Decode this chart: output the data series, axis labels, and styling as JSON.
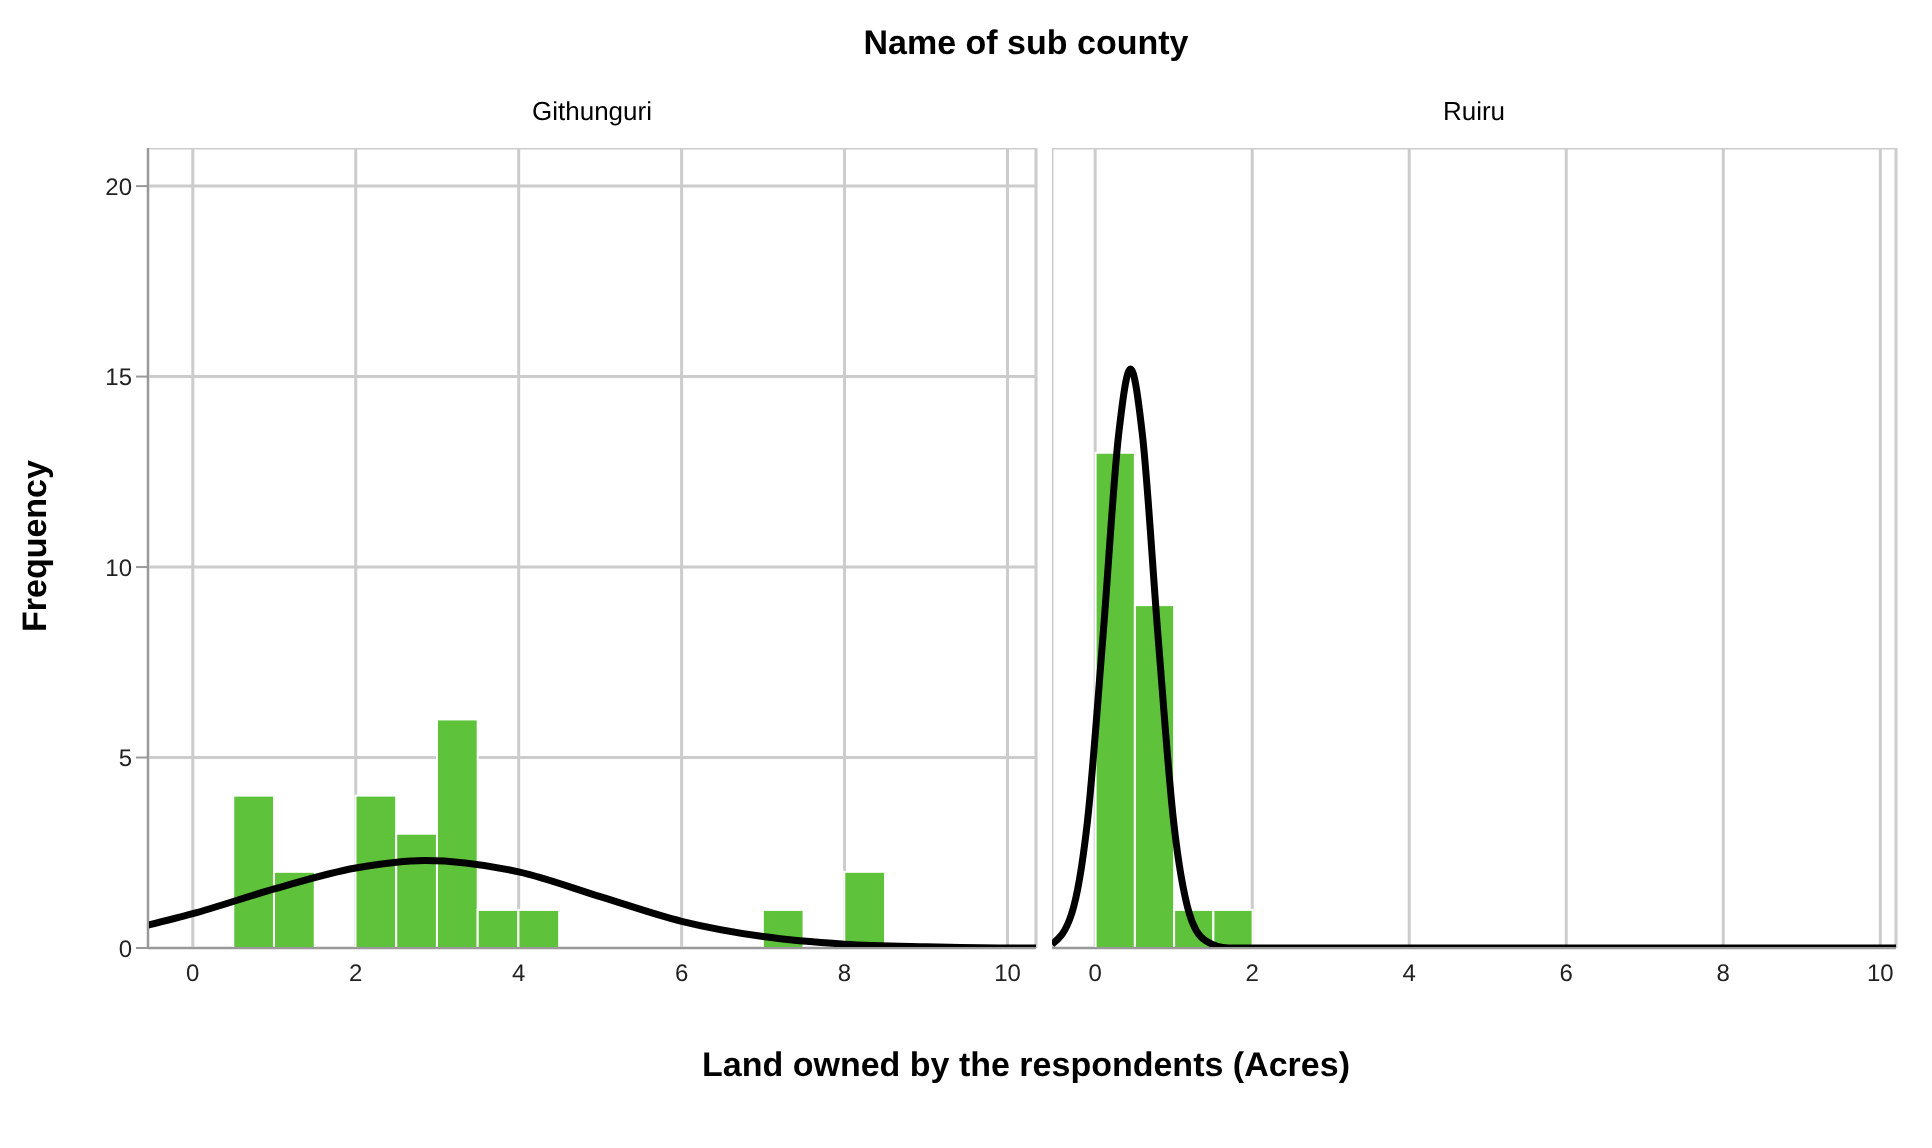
{
  "chart_data": [
    {
      "type": "histogram",
      "title": "Githunguri",
      "annotations": [
        "Name of sub county"
      ],
      "xlabel": "Land owned by the respondents (Acres)",
      "ylabel": "Frequency",
      "bins": [
        0.5,
        1,
        1.5,
        2,
        2.5,
        3,
        3.5,
        4,
        4.5,
        5,
        5.5,
        6,
        6.5,
        7,
        7.5,
        8,
        8.5
      ],
      "values": [
        4,
        2,
        0,
        4,
        3,
        6,
        1,
        1,
        0,
        0,
        0,
        0,
        0,
        1,
        0,
        2
      ],
      "color": "#5ec23a",
      "series": [
        {
          "type": "line",
          "color": "#000000",
          "x": [
            -0.55,
            0,
            1,
            2,
            2.85,
            4,
            5,
            6,
            7,
            8,
            9,
            10,
            10.35
          ],
          "values": [
            0.6,
            0.9,
            1.55,
            2.1,
            2.3,
            2.0,
            1.35,
            0.7,
            0.3,
            0.1,
            0.03,
            0,
            0
          ]
        }
      ],
      "xlim": [
        -0.55,
        10.35
      ],
      "xticks": [
        0,
        2,
        4,
        6,
        8,
        10
      ],
      "ylim": [
        0,
        21
      ],
      "yticks": [
        0,
        5,
        10,
        15,
        20
      ],
      "grid": true,
      "marker": "none"
    },
    {
      "type": "histogram",
      "title": "Ruiru",
      "bins": [
        0,
        0.5,
        1,
        1.5,
        2
      ],
      "values": [
        13,
        9,
        1,
        1
      ],
      "color": "#5ec23a",
      "series": [
        {
          "type": "line",
          "color": "#000000",
          "x": [
            -0.55,
            -0.3,
            -0.1,
            0.1,
            0.3,
            0.45,
            0.6,
            0.8,
            1.0,
            1.2,
            1.4,
            1.7,
            2.5,
            10.2
          ],
          "values": [
            0.1,
            0.9,
            3.3,
            8.2,
            13.5,
            15.2,
            13.5,
            8.2,
            3.3,
            0.9,
            0.2,
            0,
            0,
            0
          ]
        }
      ],
      "xlim": [
        -0.55,
        10.2
      ],
      "xticks": [
        0,
        2,
        4,
        6,
        8,
        10
      ],
      "ylim": [
        0,
        21
      ],
      "yticks": [
        0,
        5,
        10,
        15,
        20
      ],
      "grid": true,
      "marker": "none",
      "tick_labels": "x"
    }
  ]
}
